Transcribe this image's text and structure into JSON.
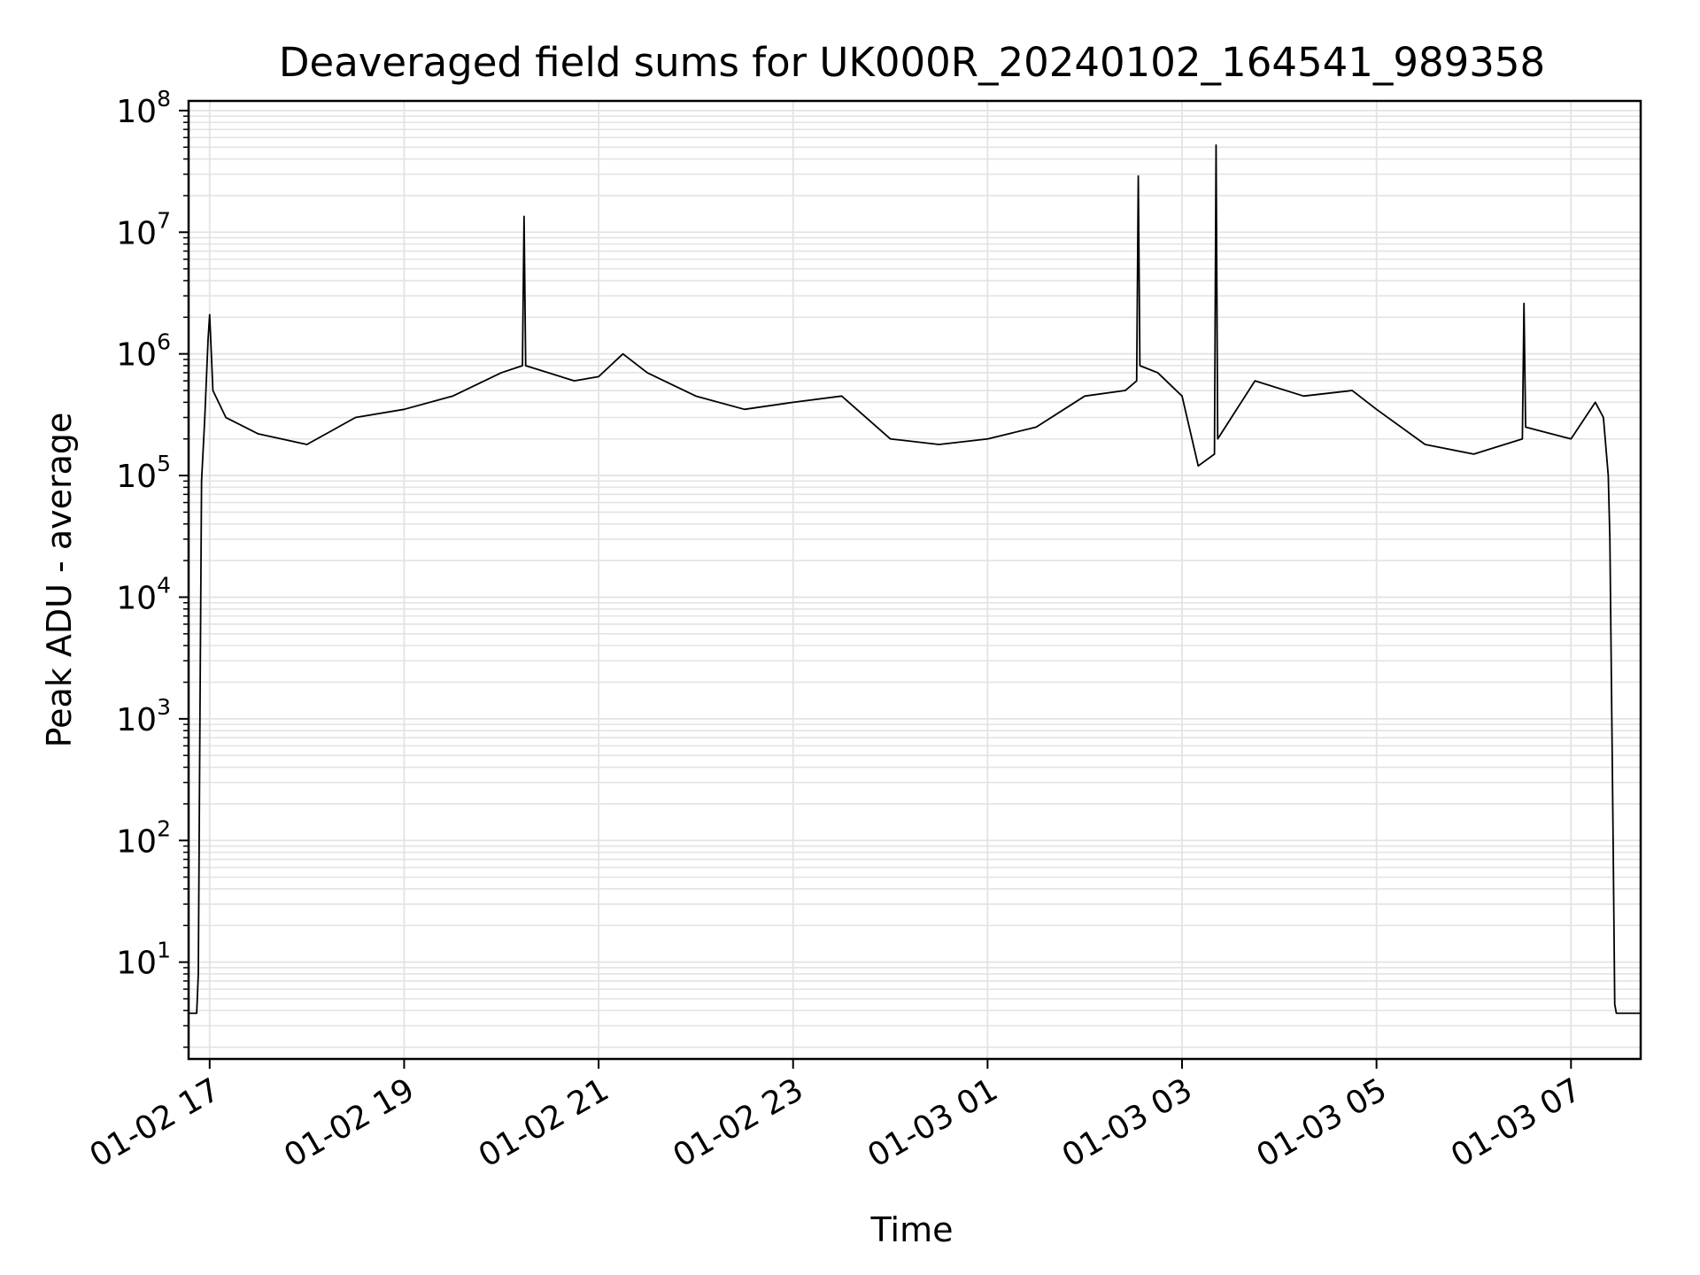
{
  "chart_data": {
    "type": "line",
    "title": "Deaveraged field sums for UK000R_20240102_164541_989358",
    "xlabel": "Time",
    "ylabel": "Peak ADU - average",
    "y_scale": "log",
    "ylim": [
      1.6,
      120000000
    ],
    "xlim": [
      "2024-01-02 16:47",
      "2024-01-03 07:43"
    ],
    "grid": true,
    "line_color": "#000000",
    "grid_color": "#e3e3e3",
    "x_ticks": [
      {
        "value": "2024-01-02 17:00",
        "label": "01-02 17"
      },
      {
        "value": "2024-01-02 19:00",
        "label": "01-02 19"
      },
      {
        "value": "2024-01-02 21:00",
        "label": "01-02 21"
      },
      {
        "value": "2024-01-02 23:00",
        "label": "01-02 23"
      },
      {
        "value": "2024-01-03 01:00",
        "label": "01-03 01"
      },
      {
        "value": "2024-01-03 03:00",
        "label": "01-03 03"
      },
      {
        "value": "2024-01-03 05:00",
        "label": "01-03 05"
      },
      {
        "value": "2024-01-03 07:00",
        "label": "01-03 07"
      }
    ],
    "y_ticks": [
      {
        "value": 10,
        "base": "10",
        "exp": "1"
      },
      {
        "value": 100,
        "base": "10",
        "exp": "2"
      },
      {
        "value": 1000,
        "base": "10",
        "exp": "3"
      },
      {
        "value": 10000,
        "base": "10",
        "exp": "4"
      },
      {
        "value": 100000,
        "base": "10",
        "exp": "5"
      },
      {
        "value": 1000000,
        "base": "10",
        "exp": "6"
      },
      {
        "value": 10000000,
        "base": "10",
        "exp": "7"
      },
      {
        "value": 100000000,
        "base": "10",
        "exp": "8"
      }
    ],
    "series": [
      {
        "points": [
          [
            "2024-01-02 16:47",
            3.8
          ],
          [
            "2024-01-02 16:52",
            3.8
          ],
          [
            "2024-01-02 16:53",
            8
          ],
          [
            "2024-01-02 16:54",
            1000
          ],
          [
            "2024-01-02 16:55",
            90000
          ],
          [
            "2024-01-02 16:57",
            300000
          ],
          [
            "2024-01-02 16:59",
            1300000
          ],
          [
            "2024-01-02 17:00",
            2100000
          ],
          [
            "2024-01-02 17:02",
            500000
          ],
          [
            "2024-01-02 17:10",
            300000
          ],
          [
            "2024-01-02 17:30",
            220000
          ],
          [
            "2024-01-02 18:00",
            180000
          ],
          [
            "2024-01-02 18:30",
            300000
          ],
          [
            "2024-01-02 19:00",
            350000
          ],
          [
            "2024-01-02 19:30",
            450000
          ],
          [
            "2024-01-02 20:00",
            700000
          ],
          [
            "2024-01-02 20:13",
            800000
          ],
          [
            "2024-01-02 20:14",
            13500000
          ],
          [
            "2024-01-02 20:15",
            800000
          ],
          [
            "2024-01-02 20:45",
            600000
          ],
          [
            "2024-01-02 21:00",
            650000
          ],
          [
            "2024-01-02 21:15",
            1000000
          ],
          [
            "2024-01-02 21:30",
            700000
          ],
          [
            "2024-01-02 22:00",
            450000
          ],
          [
            "2024-01-02 22:30",
            350000
          ],
          [
            "2024-01-02 23:00",
            400000
          ],
          [
            "2024-01-02 23:30",
            450000
          ],
          [
            "2024-01-03 00:00",
            200000
          ],
          [
            "2024-01-03 00:30",
            180000
          ],
          [
            "2024-01-03 01:00",
            200000
          ],
          [
            "2024-01-03 01:30",
            250000
          ],
          [
            "2024-01-03 02:00",
            450000
          ],
          [
            "2024-01-03 02:25",
            500000
          ],
          [
            "2024-01-03 02:32",
            600000
          ],
          [
            "2024-01-03 02:33",
            29000000
          ],
          [
            "2024-01-03 02:34",
            800000
          ],
          [
            "2024-01-03 02:45",
            700000
          ],
          [
            "2024-01-03 03:00",
            450000
          ],
          [
            "2024-01-03 03:10",
            120000
          ],
          [
            "2024-01-03 03:20",
            150000
          ],
          [
            "2024-01-03 03:21",
            52000000
          ],
          [
            "2024-01-03 03:22",
            200000
          ],
          [
            "2024-01-03 03:45",
            600000
          ],
          [
            "2024-01-03 04:15",
            450000
          ],
          [
            "2024-01-03 04:45",
            500000
          ],
          [
            "2024-01-03 05:00",
            350000
          ],
          [
            "2024-01-03 05:30",
            180000
          ],
          [
            "2024-01-03 06:00",
            150000
          ],
          [
            "2024-01-03 06:30",
            200000
          ],
          [
            "2024-01-03 06:31",
            2600000
          ],
          [
            "2024-01-03 06:32",
            250000
          ],
          [
            "2024-01-03 07:00",
            200000
          ],
          [
            "2024-01-03 07:15",
            400000
          ],
          [
            "2024-01-03 07:20",
            300000
          ],
          [
            "2024-01-03 07:23",
            100000
          ],
          [
            "2024-01-03 07:24",
            30000
          ],
          [
            "2024-01-03 07:26",
            100
          ],
          [
            "2024-01-03 07:27",
            4.5
          ],
          [
            "2024-01-03 07:28",
            3.8
          ],
          [
            "2024-01-03 07:43",
            3.8
          ]
        ]
      }
    ]
  }
}
